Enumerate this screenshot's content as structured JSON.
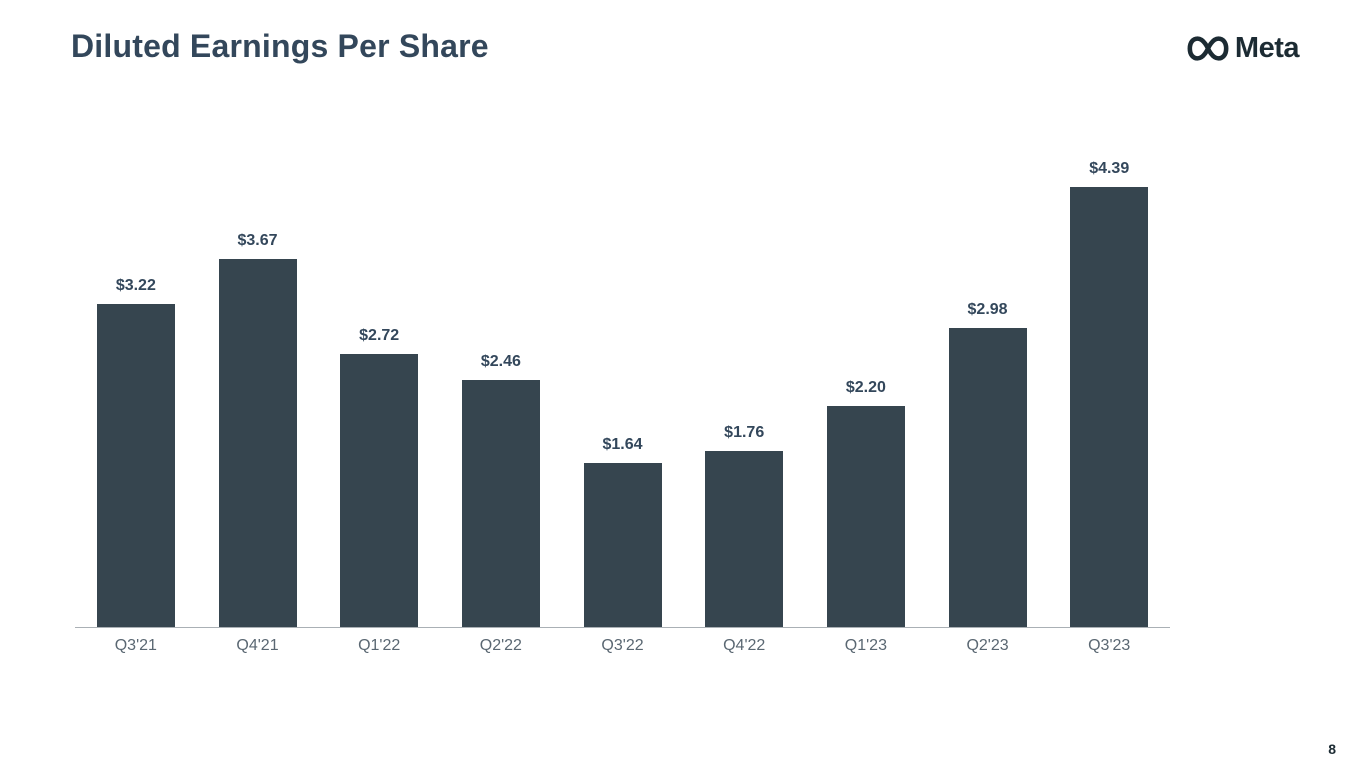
{
  "slide": {
    "title": "Diluted Earnings Per Share",
    "logo_text": "Meta",
    "page_number": "8"
  },
  "chart_data": {
    "type": "bar",
    "title": "Diluted Earnings Per Share",
    "categories": [
      "Q3'21",
      "Q4'21",
      "Q1'22",
      "Q2'22",
      "Q3'22",
      "Q4'22",
      "Q1'23",
      "Q2'23",
      "Q3'23"
    ],
    "values": [
      3.22,
      3.67,
      2.72,
      2.46,
      1.64,
      1.76,
      2.2,
      2.98,
      4.39
    ],
    "value_labels": [
      "$3.22",
      "$3.67",
      "$2.72",
      "$2.46",
      "$1.64",
      "$1.76",
      "$2.20",
      "$2.98",
      "$4.39"
    ],
    "xlabel": "",
    "ylabel": "",
    "ylim": [
      0,
      4.39
    ],
    "grid": false,
    "legend": "none",
    "bar_color": "#36454F",
    "value_label_color": "#33475B",
    "tick_label_color": "#5A6772",
    "axis_line_color": "#aab0b5"
  }
}
